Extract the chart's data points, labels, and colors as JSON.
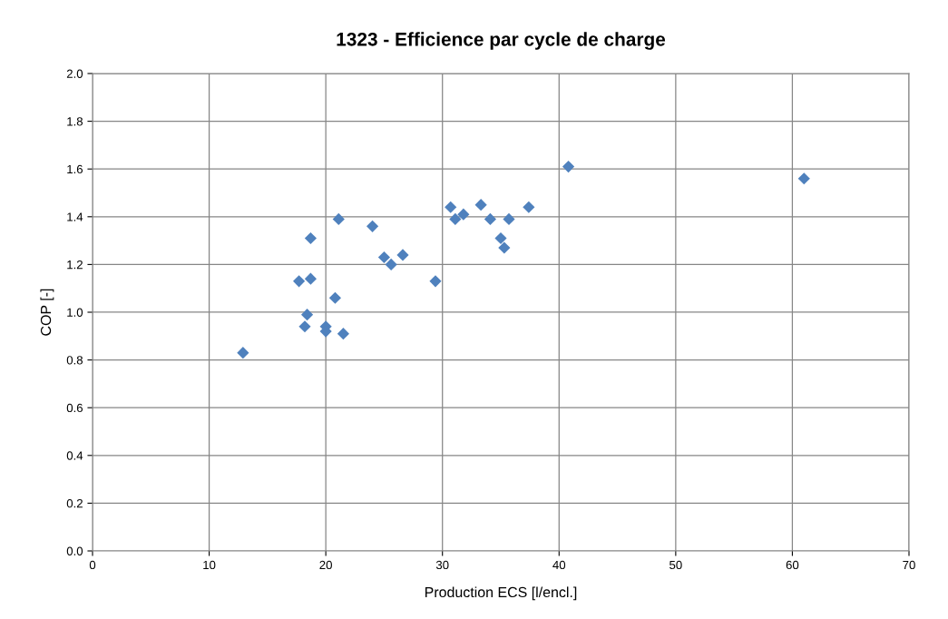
{
  "chart_data": {
    "type": "scatter",
    "title": "1323 - Efficience par cycle de charge",
    "xlabel": "Production ECS [l/encl.]",
    "ylabel": "COP [-]",
    "x": [
      12.9,
      17.7,
      18.2,
      18.4,
      18.7,
      18.7,
      20.0,
      20.0,
      21.5,
      20.8,
      21.1,
      24.0,
      25.0,
      25.6,
      26.6,
      29.4,
      30.7,
      31.1,
      31.8,
      33.3,
      34.1,
      35.0,
      35.3,
      35.7,
      37.4,
      40.8,
      61.0
    ],
    "values": [
      0.83,
      1.13,
      0.94,
      0.99,
      1.14,
      1.31,
      0.94,
      0.92,
      0.91,
      1.06,
      1.39,
      1.36,
      1.23,
      1.2,
      1.24,
      1.13,
      1.44,
      1.39,
      1.41,
      1.45,
      1.39,
      1.31,
      1.27,
      1.39,
      1.44,
      1.61,
      1.56
    ],
    "color": "#4f81bd",
    "marker": "diamond",
    "grid": true,
    "xlim": [
      0,
      70
    ],
    "xticks": [
      0,
      10,
      20,
      30,
      40,
      50,
      60,
      70
    ],
    "ylim": [
      0,
      2
    ],
    "yticks": [
      {
        "value": 0,
        "label": "0.0"
      },
      {
        "value": 0.2,
        "label": "0.2"
      },
      {
        "value": 0.4,
        "label": "0.4"
      },
      {
        "value": 0.6,
        "label": "0.6"
      },
      {
        "value": 0.8,
        "label": "0.8"
      },
      {
        "value": 1.0,
        "label": "1.0"
      },
      {
        "value": 1.2,
        "label": "1.2"
      },
      {
        "value": 1.4,
        "label": "1.4"
      },
      {
        "value": 1.6,
        "label": "1.6"
      },
      {
        "value": 1.8,
        "label": "1.8"
      },
      {
        "value": 2.0,
        "label": "2.0"
      }
    ]
  }
}
